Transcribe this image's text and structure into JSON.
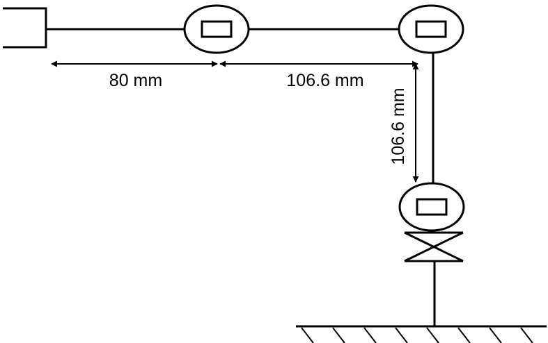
{
  "dimensions": {
    "segment_1": "80 mm",
    "segment_2": "106.6 mm",
    "segment_3": "106.6 mm"
  },
  "parts": {
    "base_block": "base-block",
    "joint_1": "joint-1",
    "joint_2": "joint-2",
    "joint_3": "joint-3",
    "gripper": "gripper",
    "ground": "ground"
  },
  "colors": {
    "stroke": "#000000",
    "background": "#ffffff"
  }
}
